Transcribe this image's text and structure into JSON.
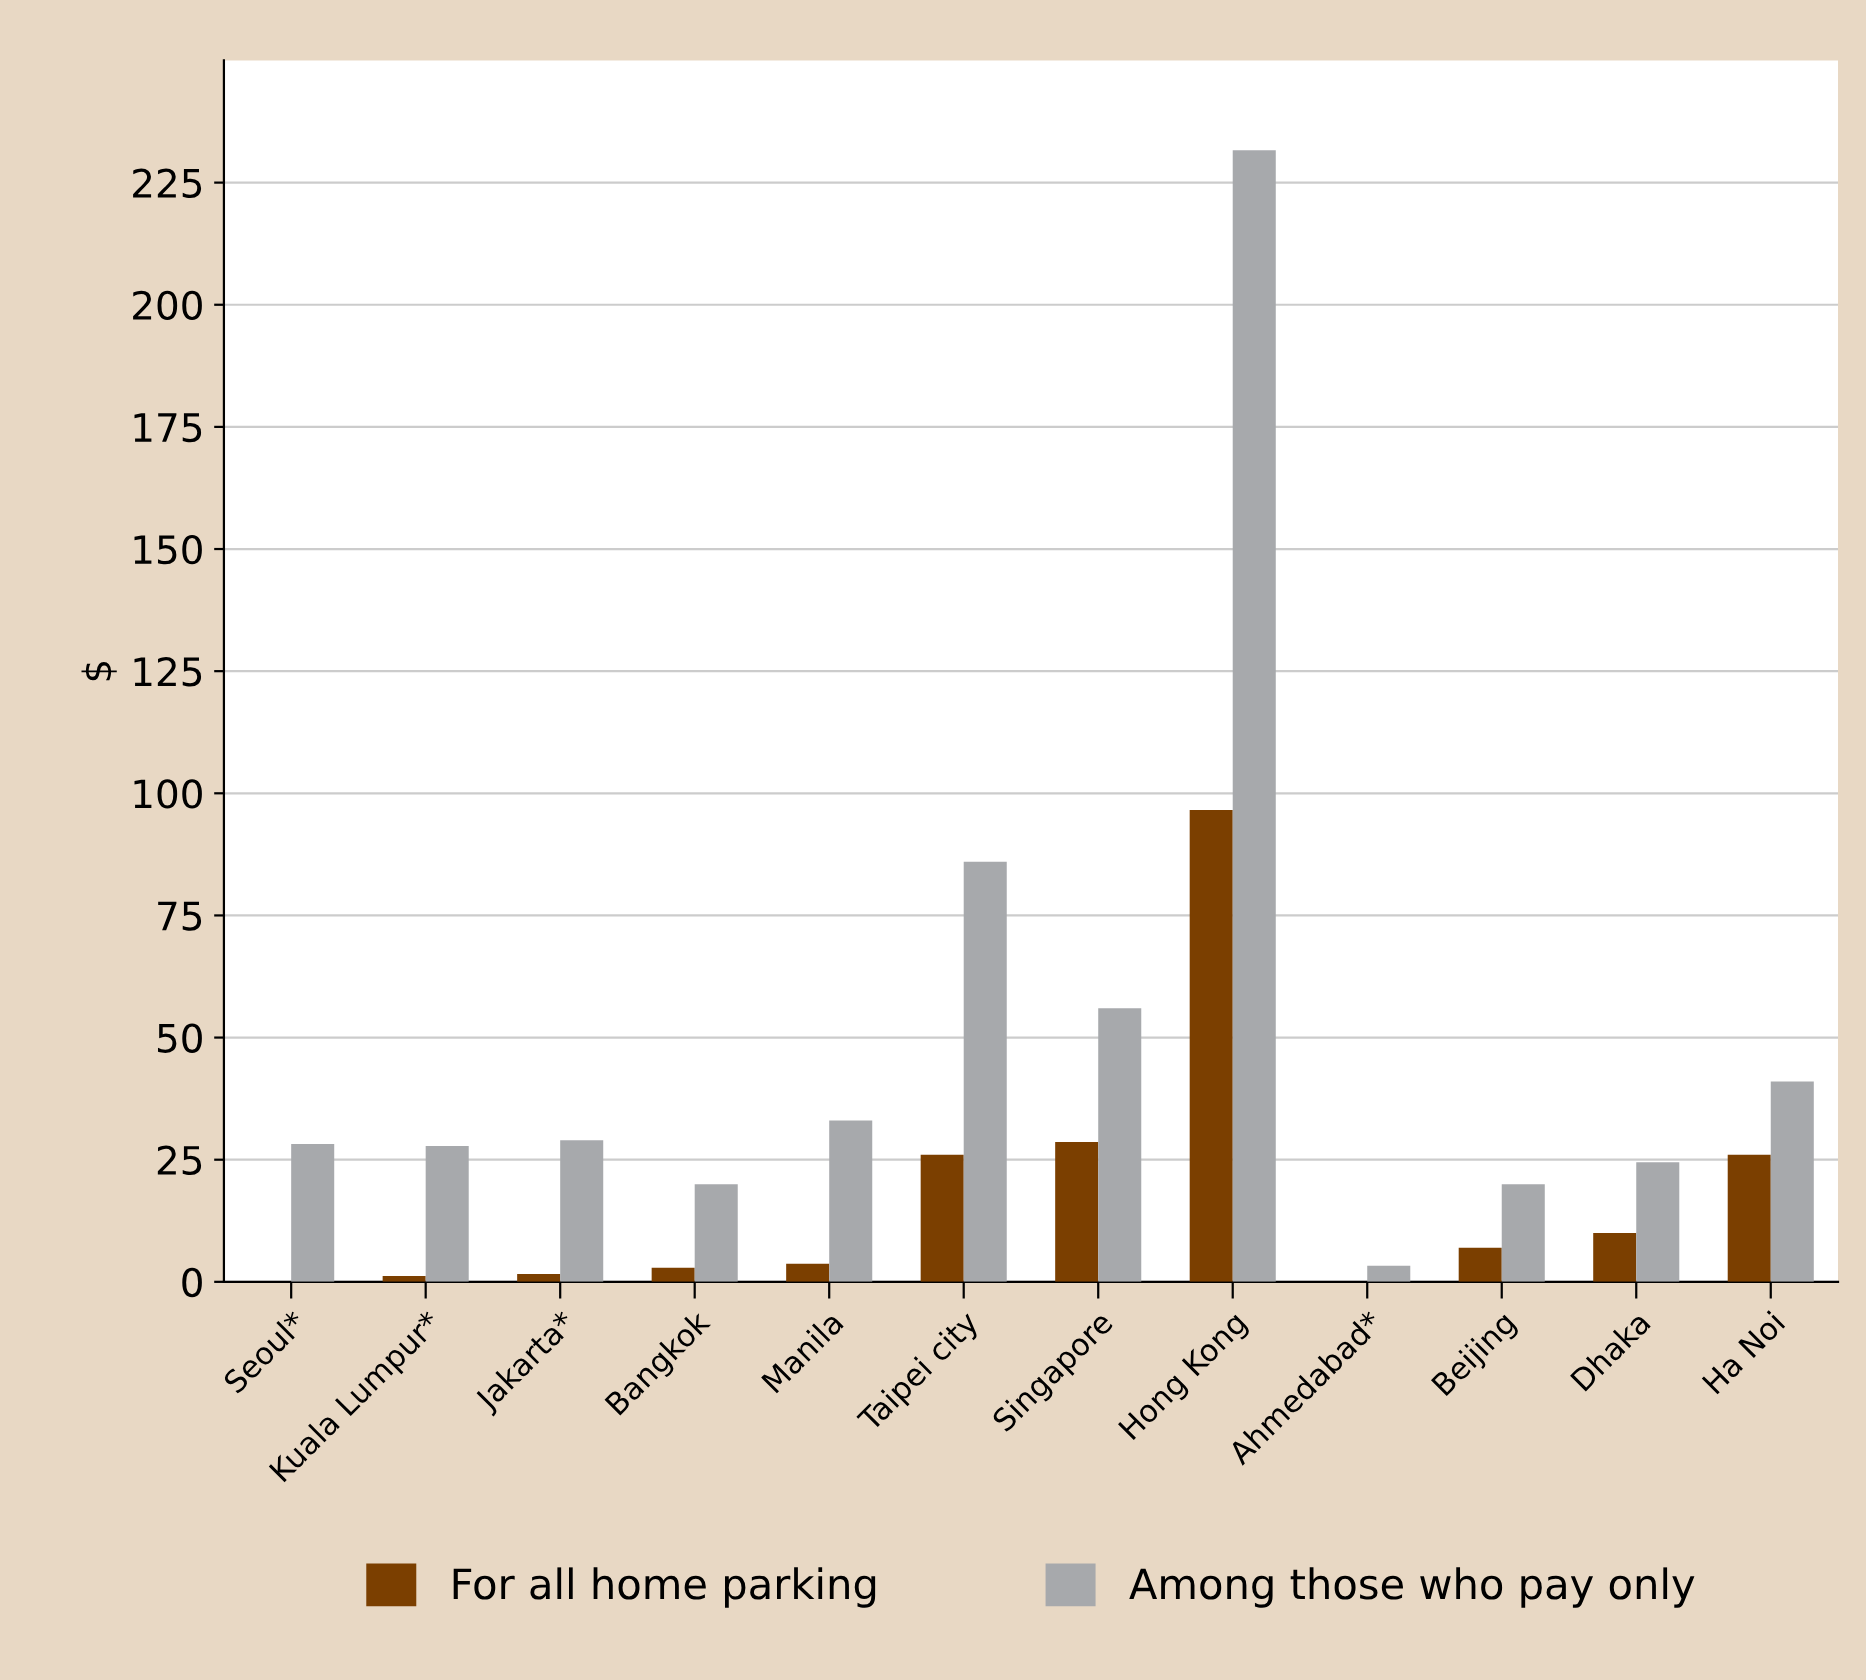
{
  "chart_data": {
    "type": "bar",
    "ylabel": "$",
    "categories": [
      "Seoul*",
      "Kuala Lumpur*",
      "Jakarta*",
      "Bangkok",
      "Manila",
      "Taipei city",
      "Singapore",
      "Hong Kong",
      "Ahmedabad*",
      "Beijing",
      "Dhaka",
      "Ha Noi"
    ],
    "series": [
      {
        "name": "For all home parking",
        "color": "#7b3f00",
        "values": [
          null,
          1.2,
          1.6,
          2.9,
          3.7,
          26,
          28.6,
          96.6,
          null,
          7,
          10,
          26
        ]
      },
      {
        "name": "Among those who pay only",
        "color": "#a7a9ac",
        "values": [
          28.2,
          27.8,
          29,
          20,
          33,
          86,
          56,
          231.6,
          3.3,
          20,
          24.5,
          41
        ]
      }
    ],
    "ylim": [
      0,
      250
    ],
    "yticks": [
      0,
      25,
      50,
      75,
      100,
      125,
      150,
      175,
      200,
      225
    ],
    "grid": "y",
    "legend": "bottom"
  }
}
